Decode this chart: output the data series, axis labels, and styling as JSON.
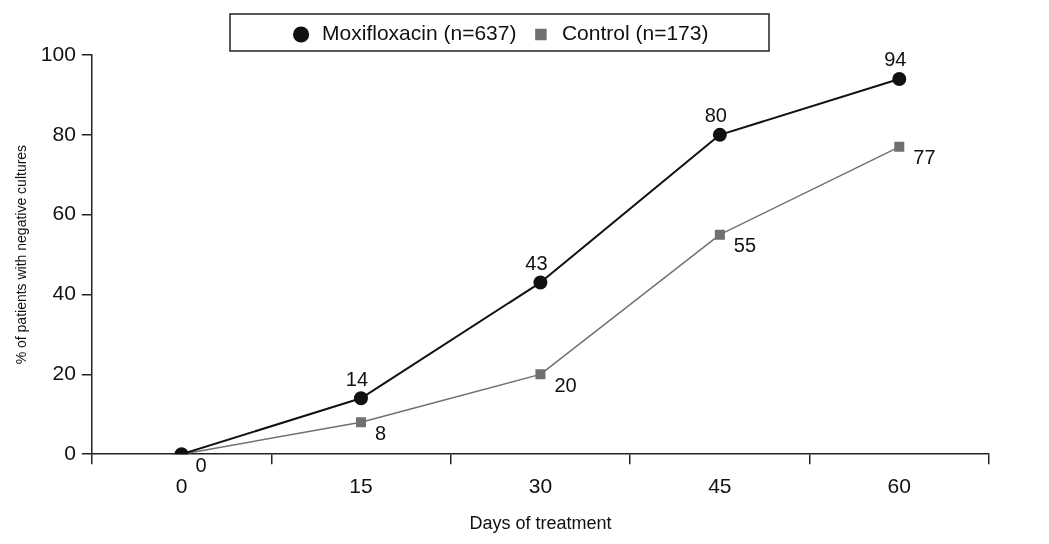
{
  "chart_data": {
    "type": "line",
    "xlabel": "Days of treatment",
    "ylabel": "% of patients with negative cultures",
    "categories": [
      "0",
      "15",
      "30",
      "45",
      "60"
    ],
    "series": [
      {
        "name": "Moxifloxacin (n=637)",
        "color": "#111111",
        "marker": "circle",
        "values": [
          0,
          14,
          43,
          80,
          94
        ],
        "value_labels": [
          null,
          "14",
          "43",
          "80",
          "94"
        ]
      },
      {
        "name": "Control (n=173)",
        "color": "#707070",
        "marker": "square",
        "values": [
          0,
          8,
          20,
          55,
          77
        ],
        "value_labels": [
          "0",
          "8",
          "20",
          "55",
          "77"
        ]
      }
    ],
    "ylim": [
      0,
      100
    ],
    "yticks": [
      0,
      20,
      40,
      60,
      80,
      100
    ],
    "grid": false,
    "legend": "top"
  }
}
